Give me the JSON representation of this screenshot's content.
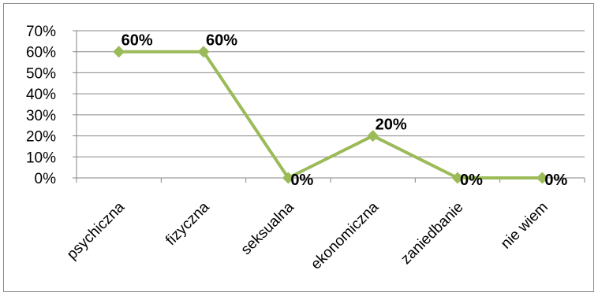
{
  "chart_data": {
    "type": "line",
    "categories": [
      "psychiczna",
      "fizyczna",
      "seksualna",
      "ekonomiczna",
      "zaniedbanie",
      "nie wiem"
    ],
    "series": [
      {
        "values": [
          60,
          60,
          0,
          20,
          0,
          0
        ],
        "color": "#9bbb59"
      }
    ],
    "data_labels": [
      "60%",
      "60%",
      "0%",
      "20%",
      "0%",
      "0%"
    ],
    "y_ticks": [
      "0%",
      "10%",
      "20%",
      "30%",
      "40%",
      "50%",
      "60%",
      "70%"
    ],
    "ylim": [
      0,
      70
    ],
    "grid": true,
    "legend": false,
    "marker": "diamond"
  }
}
